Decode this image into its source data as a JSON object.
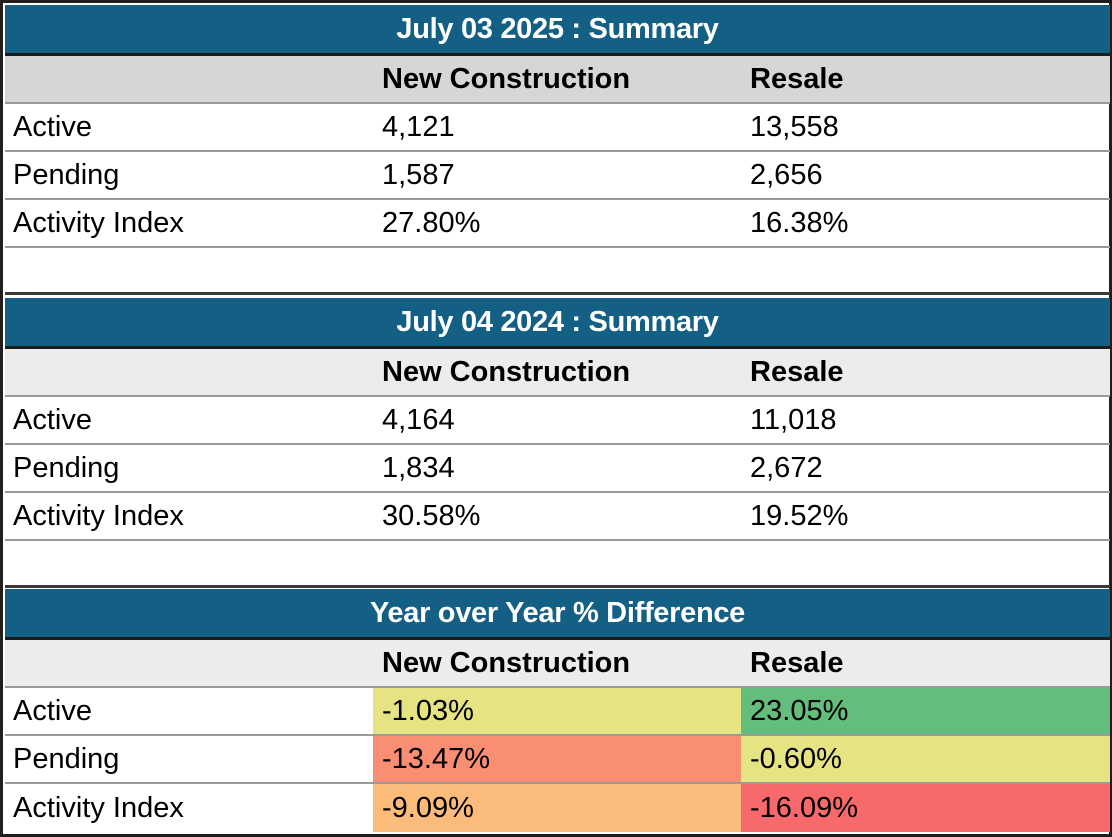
{
  "sections": [
    {
      "title": "July 03 2025 : Summary",
      "headers": {
        "label": "",
        "new_construction": "New Construction",
        "resale": "Resale"
      },
      "rows": [
        {
          "label": "Active",
          "new_construction": "4,121",
          "resale": "13,558"
        },
        {
          "label": "Pending",
          "new_construction": "1,587",
          "resale": "2,656"
        },
        {
          "label": "Activity Index",
          "new_construction": "27.80%",
          "resale": "16.38%"
        }
      ]
    },
    {
      "title": "July 04 2024 : Summary",
      "headers": {
        "label": "",
        "new_construction": "New Construction",
        "resale": "Resale"
      },
      "rows": [
        {
          "label": "Active",
          "new_construction": "4,164",
          "resale": "11,018"
        },
        {
          "label": "Pending",
          "new_construction": "1,834",
          "resale": "2,672"
        },
        {
          "label": "Activity Index",
          "new_construction": "30.58%",
          "resale": "19.52%"
        }
      ]
    },
    {
      "title": "Year over Year % Difference",
      "headers": {
        "label": "",
        "new_construction": "New Construction",
        "resale": "Resale"
      },
      "rows": [
        {
          "label": "Active",
          "new_construction": "-1.03%",
          "resale": "23.05%"
        },
        {
          "label": "Pending",
          "new_construction": "-13.47%",
          "resale": "-0.60%"
        },
        {
          "label": "Activity Index",
          "new_construction": "-9.09%",
          "resale": "-16.09%"
        }
      ]
    }
  ],
  "colors": {
    "title_bar": "#145f84",
    "title_text": "#ffffff",
    "header_fill": "#d6d6d6",
    "header_fill_light": "#ececec",
    "yoy_fills": {
      "active_new_construction": "#e6e383",
      "active_resale": "#63be7b",
      "pending_new_construction": "#f98e72",
      "pending_resale": "#e6e383",
      "activity_new_construction": "#fbbc7b",
      "activity_resale": "#f8696b"
    }
  }
}
